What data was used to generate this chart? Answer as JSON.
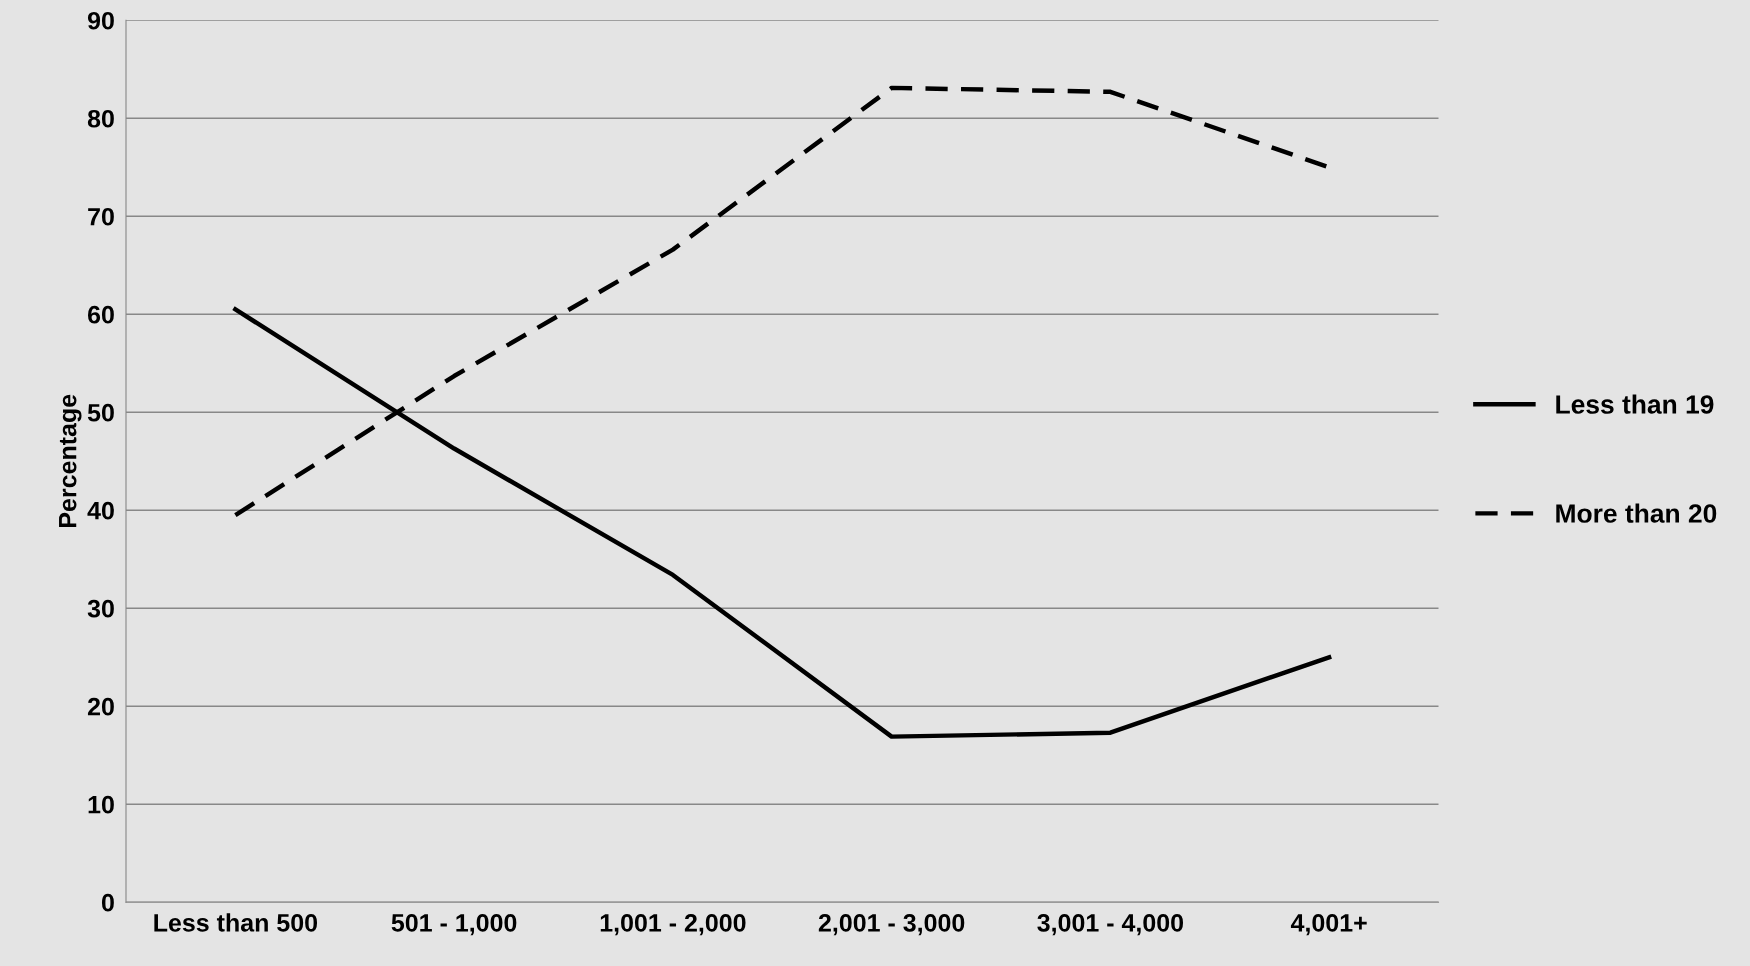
{
  "chart_data": {
    "type": "line",
    "ylabel": "Percentage",
    "categories": [
      "Less than 500",
      "501 - 1,000",
      "1,001 - 2,000",
      "2,001 - 3,000",
      "3,001 - 4,000",
      "4,001+"
    ],
    "series": [
      {
        "name": "Less than 19",
        "color": "#000000",
        "line_style": "solid",
        "values": [
          60.5,
          46.3,
          33.4,
          16.9,
          17.3,
          25.0
        ]
      },
      {
        "name": "More than 20",
        "color": "#000000",
        "line_style": "dashed",
        "values": [
          39.5,
          53.7,
          66.6,
          83.1,
          82.7,
          75.0
        ]
      }
    ],
    "ylim": [
      0,
      90
    ],
    "yticks": [
      0,
      10,
      20,
      30,
      40,
      50,
      60,
      70,
      80,
      90
    ],
    "grid": "y",
    "legend": "right",
    "marker": "none"
  }
}
